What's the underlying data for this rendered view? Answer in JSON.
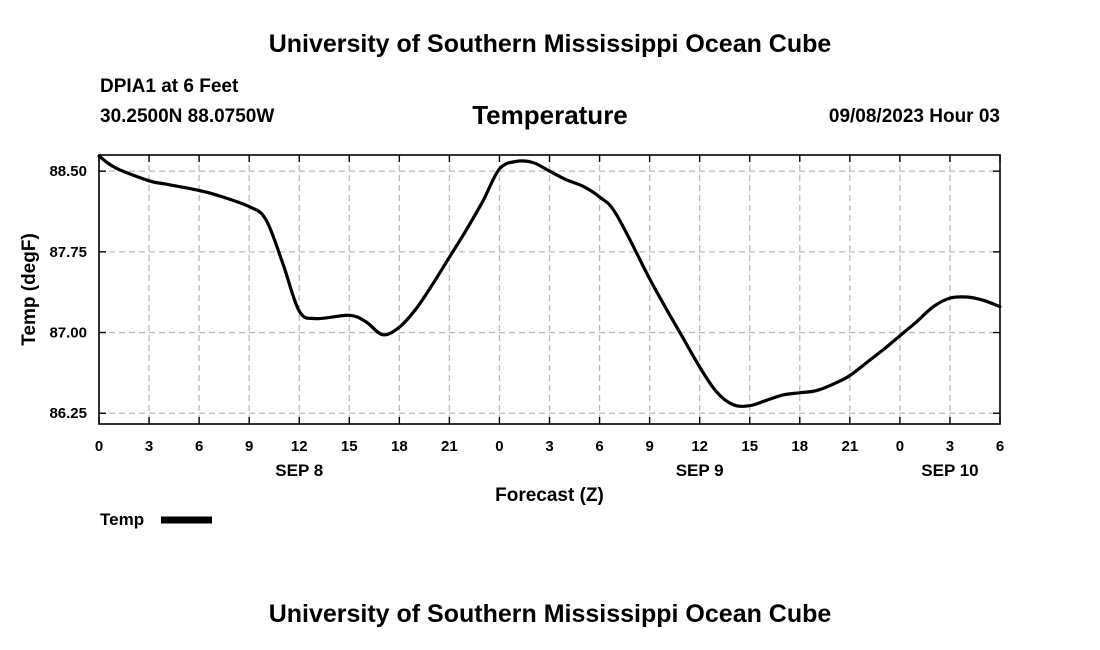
{
  "header": {
    "title": "University of Southern Mississippi Ocean Cube",
    "station": "DPIA1 at 6 Feet",
    "coords": "30.2500N  88.0750W",
    "chart_title": "Temperature",
    "datetime": "09/08/2023 Hour 03"
  },
  "footer": {
    "title": "University of Southern Mississippi Ocean Cube"
  },
  "chart_data": {
    "type": "line",
    "title": "Temperature",
    "xlabel": "Forecast (Z)",
    "ylabel": "Temp (degF)",
    "x_hours": [
      0,
      1,
      3,
      4,
      6,
      7,
      9,
      10,
      11,
      12,
      13,
      15,
      16,
      17,
      18,
      19,
      20,
      21,
      22,
      23,
      24,
      25,
      26,
      27,
      28,
      29,
      30,
      31,
      33,
      34,
      35,
      36,
      37,
      38,
      39,
      40,
      41,
      42,
      43,
      44,
      45,
      46,
      47,
      48,
      49,
      50,
      51,
      52,
      53,
      54
    ],
    "x_tick_values": [
      0,
      3,
      6,
      9,
      12,
      15,
      18,
      21,
      24,
      27,
      30,
      33,
      36,
      39,
      42,
      45,
      48,
      51,
      54
    ],
    "x_tick_labels": [
      "0",
      "3",
      "6",
      "9",
      "12",
      "15",
      "18",
      "21",
      "0",
      "3",
      "6",
      "9",
      "12",
      "15",
      "18",
      "21",
      "0",
      "3",
      "6"
    ],
    "day_labels": [
      {
        "label": "SEP 8",
        "hour": 12
      },
      {
        "label": "SEP 9",
        "hour": 36
      },
      {
        "label": "SEP 10",
        "hour": 51
      }
    ],
    "series": [
      {
        "name": "Temp",
        "color": "#000000",
        "values": [
          88.64,
          88.53,
          88.41,
          88.38,
          88.32,
          88.28,
          88.17,
          88.05,
          87.65,
          87.2,
          87.13,
          87.16,
          87.1,
          86.98,
          87.05,
          87.22,
          87.45,
          87.7,
          87.95,
          88.22,
          88.52,
          88.59,
          88.58,
          88.5,
          88.42,
          88.36,
          88.26,
          88.1,
          87.5,
          87.22,
          86.95,
          86.68,
          86.45,
          86.33,
          86.32,
          86.37,
          86.42,
          86.44,
          86.46,
          86.52,
          86.6,
          86.72,
          86.84,
          86.97,
          87.1,
          87.24,
          87.32,
          87.33,
          87.3,
          87.24
        ]
      }
    ],
    "y_ticks": [
      86.25,
      87.0,
      87.75,
      88.5
    ],
    "y_tick_labels": [
      "86.25",
      "87.00",
      "87.75",
      "88.50"
    ],
    "xlim": [
      0,
      54
    ],
    "ylim": [
      86.15,
      88.65
    ],
    "grid": true,
    "grid_style": "dashed",
    "legend": {
      "label": "Temp",
      "placement": "bottom-left"
    }
  }
}
